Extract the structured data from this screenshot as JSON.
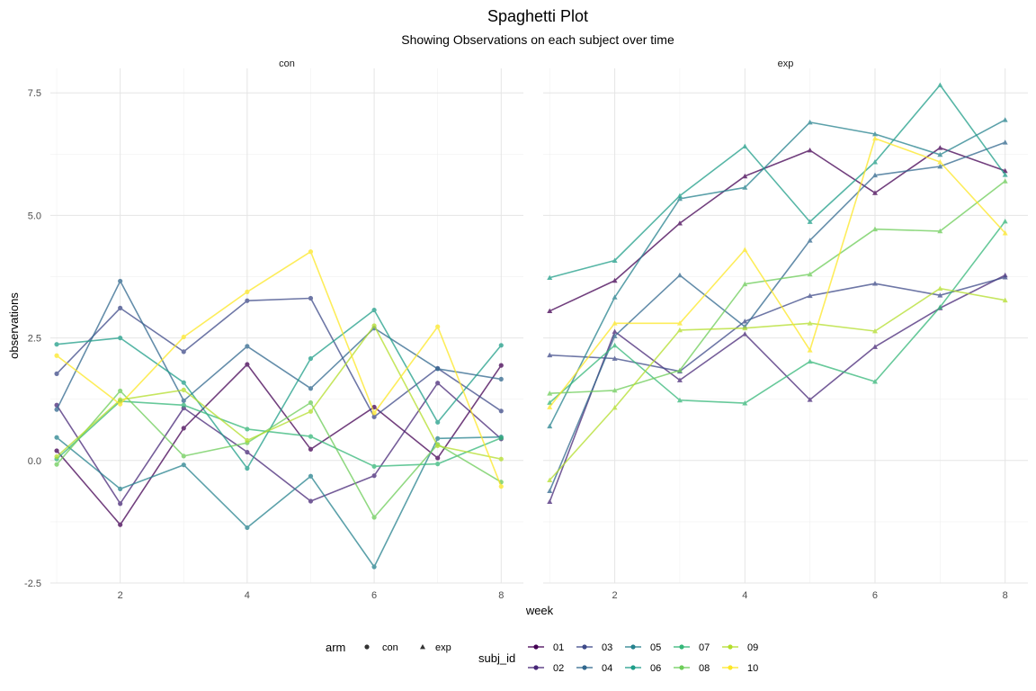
{
  "chart_data": {
    "type": "line",
    "title": "Spaghetti Plot",
    "subtitle": "Showing Observations on each subject over time",
    "xlabel": "week",
    "ylabel": "observations",
    "xlim": [
      0.9,
      8.35
    ],
    "ylim": [
      -2.5,
      8.0
    ],
    "x_ticks": [
      2,
      4,
      6,
      8
    ],
    "y_ticks": [
      -2.5,
      0,
      2.5,
      5,
      7.5
    ],
    "y_tick_labels": [
      "-2.5",
      "0.0",
      "2.5",
      "5.0",
      "7.5"
    ],
    "grid": true,
    "legend_placement": "bottom",
    "x": [
      1,
      2,
      3,
      4,
      5,
      6,
      7,
      8
    ],
    "panels": [
      {
        "label": "con",
        "marker": "circle",
        "series": [
          {
            "name": "01",
            "color": "#440154",
            "values": [
              0.2,
              -1.31,
              0.66,
              1.96,
              0.23,
              1.09,
              0.05,
              1.94
            ]
          },
          {
            "name": "02",
            "color": "#482878",
            "values": [
              1.13,
              -0.88,
              1.07,
              0.17,
              -0.83,
              -0.31,
              1.58,
              0.44
            ]
          },
          {
            "name": "03",
            "color": "#3E4A89",
            "values": [
              1.77,
              3.11,
              2.22,
              3.26,
              3.31,
              0.89,
              1.88,
              1.01
            ]
          },
          {
            "name": "04",
            "color": "#31688E",
            "values": [
              1.04,
              3.66,
              1.22,
              2.33,
              1.47,
              2.7,
              1.87,
              1.66
            ]
          },
          {
            "name": "05",
            "color": "#26828E",
            "values": [
              0.47,
              -0.58,
              -0.09,
              -1.37,
              -0.32,
              -2.17,
              0.45,
              0.48
            ]
          },
          {
            "name": "06",
            "color": "#1F9E89",
            "values": [
              2.37,
              2.5,
              1.59,
              -0.16,
              2.08,
              3.07,
              0.78,
              2.35
            ]
          },
          {
            "name": "07",
            "color": "#35B779",
            "values": [
              0.03,
              1.21,
              1.13,
              0.64,
              0.49,
              -0.12,
              -0.07,
              0.46
            ]
          },
          {
            "name": "08",
            "color": "#6DCD59",
            "values": [
              -0.08,
              1.42,
              0.09,
              0.36,
              1.18,
              -1.16,
              0.33,
              -0.44
            ]
          },
          {
            "name": "09",
            "color": "#B4DE2C",
            "values": [
              0.08,
              1.24,
              1.44,
              0.41,
              1.0,
              2.75,
              0.3,
              0.03
            ]
          },
          {
            "name": "10",
            "color": "#FDE725",
            "values": [
              2.14,
              1.15,
              2.52,
              3.44,
              4.26,
              0.97,
              2.73,
              -0.53
            ]
          }
        ]
      },
      {
        "label": "exp",
        "marker": "triangle",
        "series": [
          {
            "name": "01",
            "color": "#440154",
            "values": [
              3.05,
              3.67,
              4.84,
              5.8,
              6.33,
              5.46,
              6.38,
              5.91
            ]
          },
          {
            "name": "02",
            "color": "#482878",
            "values": [
              -0.84,
              2.63,
              1.64,
              2.58,
              1.24,
              2.32,
              3.11,
              3.78
            ]
          },
          {
            "name": "03",
            "color": "#3E4A89",
            "values": [
              2.15,
              2.08,
              1.82,
              2.84,
              3.36,
              3.61,
              3.37,
              3.74
            ]
          },
          {
            "name": "04",
            "color": "#31688E",
            "values": [
              -0.62,
              2.54,
              3.78,
              2.73,
              4.49,
              5.82,
              6.0,
              6.49
            ]
          },
          {
            "name": "05",
            "color": "#26828E",
            "values": [
              0.7,
              3.33,
              5.34,
              5.57,
              6.9,
              6.66,
              6.24,
              6.95
            ]
          },
          {
            "name": "06",
            "color": "#1F9E89",
            "values": [
              3.73,
              4.08,
              5.4,
              6.41,
              4.87,
              6.09,
              7.66,
              5.83
            ]
          },
          {
            "name": "07",
            "color": "#35B779",
            "values": [
              1.18,
              2.35,
              1.23,
              1.17,
              2.02,
              1.61,
              3.13,
              4.88
            ]
          },
          {
            "name": "08",
            "color": "#6DCD59",
            "values": [
              1.37,
              1.43,
              1.84,
              3.6,
              3.8,
              4.72,
              4.68,
              5.7
            ]
          },
          {
            "name": "09",
            "color": "#B4DE2C",
            "values": [
              -0.4,
              1.08,
              2.66,
              2.7,
              2.8,
              2.64,
              3.51,
              3.27
            ]
          },
          {
            "name": "10",
            "color": "#FDE725",
            "values": [
              1.09,
              2.8,
              2.8,
              4.3,
              2.25,
              6.57,
              6.09,
              4.64
            ]
          }
        ]
      }
    ],
    "legend": {
      "arm_title": "arm",
      "arm_items": [
        {
          "label": "con",
          "shape": "circle"
        },
        {
          "label": "exp",
          "shape": "triangle"
        }
      ],
      "subj_title": "subj_id"
    }
  }
}
